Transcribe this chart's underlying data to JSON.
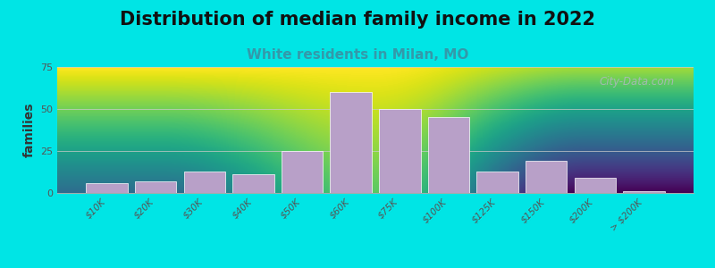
{
  "title": "Distribution of median family income in 2022",
  "subtitle": "White residents in Milan, MO",
  "ylabel": "families",
  "bar_labels": [
    "$10K",
    "$20K",
    "$30K",
    "$40K",
    "$50K",
    "$60K",
    "$75K",
    "$100K",
    "$125K",
    "$150K",
    "$200K",
    "> $200K"
  ],
  "bar_values": [
    6,
    7,
    13,
    11,
    25,
    60,
    50,
    45,
    13,
    19,
    9,
    1
  ],
  "bar_color": "#b8a0c8",
  "bar_edge_color": "#ffffff",
  "background_color": "#00e5e5",
  "plot_bg_top": "#f5f5ee",
  "plot_bg_bottom": "#d4e8c2",
  "ylim": [
    0,
    75
  ],
  "yticks": [
    0,
    25,
    50,
    75
  ],
  "title_fontsize": 15,
  "subtitle_fontsize": 11,
  "subtitle_color": "#3399aa",
  "watermark_text": "City-Data.com",
  "watermark_color": "#b0b8c0",
  "ylabel_fontsize": 10,
  "tick_label_fontsize": 7.5,
  "grid_color": "#cccccc"
}
